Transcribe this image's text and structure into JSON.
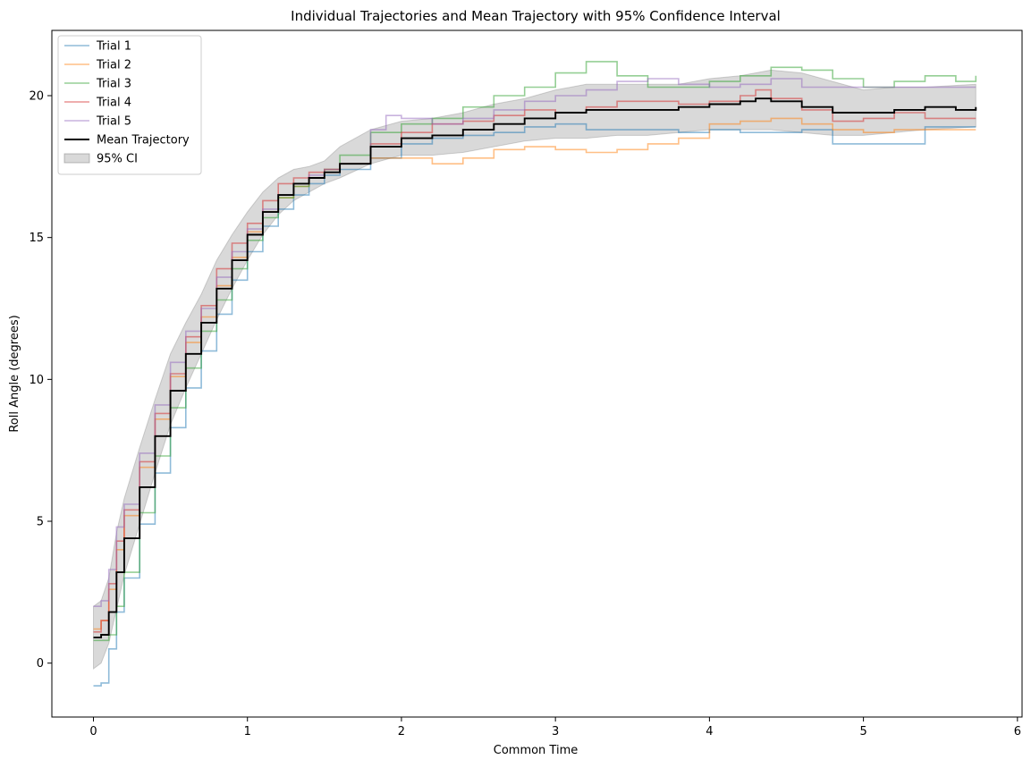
{
  "chart_data": {
    "type": "line",
    "title": "Individual Trajectories and Mean Trajectory with 95% Confidence Interval",
    "xlabel": "Common Time",
    "ylabel": "Roll Angle (degrees)",
    "xlim": [
      -0.27,
      6.03
    ],
    "ylim": [
      -1.9,
      22.3
    ],
    "xticks": [
      0,
      1,
      2,
      3,
      4,
      5,
      6
    ],
    "yticks": [
      0,
      5,
      10,
      15,
      20
    ],
    "grid": false,
    "legend_position": "upper left",
    "series": [
      {
        "name": "Trial 1",
        "color": "#1f77b4",
        "alpha": 0.5,
        "x": [
          0.0,
          0.05,
          0.1,
          0.15,
          0.2,
          0.3,
          0.4,
          0.5,
          0.6,
          0.7,
          0.8,
          0.9,
          1.0,
          1.1,
          1.2,
          1.3,
          1.4,
          1.5,
          1.6,
          1.8,
          2.0,
          2.2,
          2.4,
          2.6,
          2.8,
          3.0,
          3.2,
          3.4,
          3.6,
          3.8,
          4.0,
          4.2,
          4.4,
          4.6,
          4.8,
          5.0,
          5.2,
          5.4,
          5.73
        ],
        "y": [
          -0.8,
          -0.7,
          0.5,
          1.8,
          3.0,
          4.9,
          6.7,
          8.3,
          9.7,
          11.0,
          12.3,
          13.5,
          14.5,
          15.4,
          16.0,
          16.5,
          16.9,
          17.2,
          17.4,
          17.8,
          18.3,
          18.5,
          18.6,
          18.7,
          18.9,
          19.0,
          18.8,
          18.8,
          18.8,
          18.7,
          18.8,
          18.7,
          18.7,
          18.8,
          18.3,
          18.3,
          18.3,
          18.9,
          18.9
        ]
      },
      {
        "name": "Trial 2",
        "color": "#ff7f0e",
        "alpha": 0.5,
        "x": [
          0.0,
          0.05,
          0.1,
          0.15,
          0.2,
          0.3,
          0.4,
          0.5,
          0.6,
          0.7,
          0.8,
          0.9,
          1.0,
          1.1,
          1.2,
          1.3,
          1.4,
          1.5,
          1.6,
          1.8,
          2.0,
          2.2,
          2.4,
          2.6,
          2.8,
          3.0,
          3.2,
          3.4,
          3.6,
          3.8,
          4.0,
          4.2,
          4.4,
          4.6,
          4.8,
          5.0,
          5.2,
          5.4,
          5.73
        ],
        "y": [
          1.2,
          1.5,
          2.6,
          4.0,
          5.2,
          6.9,
          8.6,
          10.1,
          11.3,
          12.2,
          13.3,
          14.3,
          15.2,
          15.9,
          16.4,
          16.8,
          17.1,
          17.4,
          17.6,
          17.8,
          17.8,
          17.6,
          17.8,
          18.1,
          18.2,
          18.1,
          18.0,
          18.1,
          18.3,
          18.5,
          19.0,
          19.1,
          19.2,
          19.0,
          18.8,
          18.7,
          18.8,
          18.8,
          18.8
        ]
      },
      {
        "name": "Trial 3",
        "color": "#2ca02c",
        "alpha": 0.5,
        "x": [
          0.0,
          0.05,
          0.1,
          0.15,
          0.2,
          0.3,
          0.4,
          0.5,
          0.6,
          0.7,
          0.8,
          0.9,
          1.0,
          1.1,
          1.2,
          1.3,
          1.4,
          1.5,
          1.6,
          1.8,
          2.0,
          2.2,
          2.4,
          2.6,
          2.8,
          3.0,
          3.2,
          3.4,
          3.6,
          3.8,
          4.0,
          4.2,
          4.4,
          4.6,
          4.8,
          5.0,
          5.2,
          5.4,
          5.6,
          5.73
        ],
        "y": [
          0.8,
          0.8,
          1.0,
          2.0,
          3.2,
          5.3,
          7.3,
          9.0,
          10.4,
          11.7,
          12.8,
          13.9,
          14.9,
          15.7,
          16.4,
          16.8,
          17.1,
          17.4,
          17.9,
          18.7,
          19.0,
          19.2,
          19.6,
          20.0,
          20.3,
          20.8,
          21.2,
          20.7,
          20.3,
          20.3,
          20.5,
          20.7,
          21.0,
          20.9,
          20.6,
          20.3,
          20.5,
          20.7,
          20.5,
          20.7
        ]
      },
      {
        "name": "Trial 4",
        "color": "#d62728",
        "alpha": 0.5,
        "x": [
          0.0,
          0.05,
          0.1,
          0.15,
          0.2,
          0.3,
          0.4,
          0.5,
          0.6,
          0.7,
          0.8,
          0.9,
          1.0,
          1.1,
          1.2,
          1.3,
          1.4,
          1.5,
          1.6,
          1.8,
          2.0,
          2.2,
          2.4,
          2.6,
          2.8,
          3.0,
          3.2,
          3.4,
          3.6,
          3.8,
          4.0,
          4.2,
          4.3,
          4.4,
          4.6,
          4.8,
          5.0,
          5.2,
          5.4,
          5.73
        ],
        "y": [
          1.1,
          1.5,
          2.8,
          4.3,
          5.4,
          7.1,
          8.8,
          10.2,
          11.5,
          12.6,
          13.9,
          14.8,
          15.5,
          16.3,
          16.9,
          17.1,
          17.3,
          17.4,
          17.6,
          18.3,
          18.7,
          19.0,
          19.1,
          19.3,
          19.5,
          19.4,
          19.6,
          19.8,
          19.8,
          19.7,
          19.8,
          20.0,
          20.2,
          19.9,
          19.5,
          19.1,
          19.2,
          19.4,
          19.2,
          19.2
        ]
      },
      {
        "name": "Trial 5",
        "color": "#9467bd",
        "alpha": 0.5,
        "x": [
          0.0,
          0.05,
          0.1,
          0.15,
          0.2,
          0.3,
          0.4,
          0.5,
          0.6,
          0.7,
          0.8,
          0.9,
          1.0,
          1.1,
          1.2,
          1.3,
          1.4,
          1.5,
          1.6,
          1.8,
          1.9,
          2.0,
          2.2,
          2.4,
          2.6,
          2.8,
          3.0,
          3.2,
          3.4,
          3.6,
          3.8,
          4.0,
          4.2,
          4.4,
          4.6,
          4.8,
          5.0,
          5.2,
          5.4,
          5.73
        ],
        "y": [
          2.0,
          2.2,
          3.3,
          4.8,
          5.6,
          7.4,
          9.1,
          10.6,
          11.7,
          12.5,
          13.6,
          14.5,
          15.3,
          16.0,
          16.5,
          16.9,
          17.2,
          17.4,
          17.6,
          18.8,
          19.3,
          19.2,
          19.0,
          19.2,
          19.5,
          19.8,
          20.0,
          20.2,
          20.5,
          20.6,
          20.4,
          20.3,
          20.4,
          20.6,
          20.3,
          20.3,
          20.3,
          20.3,
          20.3,
          20.3
        ]
      },
      {
        "name": "Mean Trajectory",
        "color": "#000000",
        "alpha": 1.0,
        "x": [
          0.0,
          0.05,
          0.1,
          0.15,
          0.2,
          0.3,
          0.4,
          0.5,
          0.6,
          0.7,
          0.8,
          0.9,
          1.0,
          1.1,
          1.2,
          1.3,
          1.4,
          1.5,
          1.6,
          1.8,
          2.0,
          2.2,
          2.4,
          2.6,
          2.8,
          3.0,
          3.2,
          3.4,
          3.6,
          3.8,
          4.0,
          4.2,
          4.3,
          4.4,
          4.6,
          4.8,
          5.0,
          5.2,
          5.4,
          5.6,
          5.73
        ],
        "y": [
          0.9,
          1.0,
          1.8,
          3.2,
          4.4,
          6.2,
          8.0,
          9.6,
          10.9,
          12.0,
          13.2,
          14.2,
          15.1,
          15.9,
          16.5,
          16.9,
          17.1,
          17.3,
          17.6,
          18.2,
          18.5,
          18.6,
          18.8,
          19.0,
          19.2,
          19.4,
          19.5,
          19.5,
          19.5,
          19.6,
          19.7,
          19.8,
          19.9,
          19.8,
          19.6,
          19.4,
          19.4,
          19.5,
          19.6,
          19.5,
          19.6
        ]
      }
    ],
    "ci_band": {
      "name": "95% CI",
      "color": "#808080",
      "alpha": 0.3,
      "x": [
        0.0,
        0.05,
        0.1,
        0.15,
        0.2,
        0.3,
        0.4,
        0.5,
        0.6,
        0.7,
        0.8,
        0.9,
        1.0,
        1.1,
        1.2,
        1.3,
        1.4,
        1.5,
        1.6,
        1.8,
        2.0,
        2.2,
        2.4,
        2.6,
        2.8,
        3.0,
        3.2,
        3.4,
        3.6,
        3.8,
        4.0,
        4.2,
        4.4,
        4.6,
        4.8,
        5.0,
        5.2,
        5.4,
        5.73
      ],
      "lower": [
        -0.2,
        0.0,
        0.7,
        1.9,
        3.1,
        4.9,
        6.7,
        8.4,
        9.7,
        10.9,
        12.1,
        13.2,
        14.2,
        15.1,
        15.8,
        16.3,
        16.6,
        16.9,
        17.1,
        17.6,
        17.9,
        17.9,
        18.0,
        18.2,
        18.4,
        18.5,
        18.5,
        18.6,
        18.6,
        18.7,
        18.8,
        18.8,
        18.8,
        18.7,
        18.6,
        18.6,
        18.7,
        18.8,
        18.9
      ],
      "upper": [
        2.0,
        2.2,
        3.0,
        4.6,
        5.8,
        7.6,
        9.3,
        10.9,
        12.0,
        13.0,
        14.2,
        15.1,
        15.9,
        16.6,
        17.1,
        17.4,
        17.5,
        17.7,
        18.2,
        18.8,
        19.1,
        19.2,
        19.4,
        19.7,
        19.9,
        20.2,
        20.4,
        20.4,
        20.4,
        20.4,
        20.6,
        20.7,
        20.9,
        20.8,
        20.5,
        20.2,
        20.3,
        20.3,
        20.4
      ]
    }
  }
}
